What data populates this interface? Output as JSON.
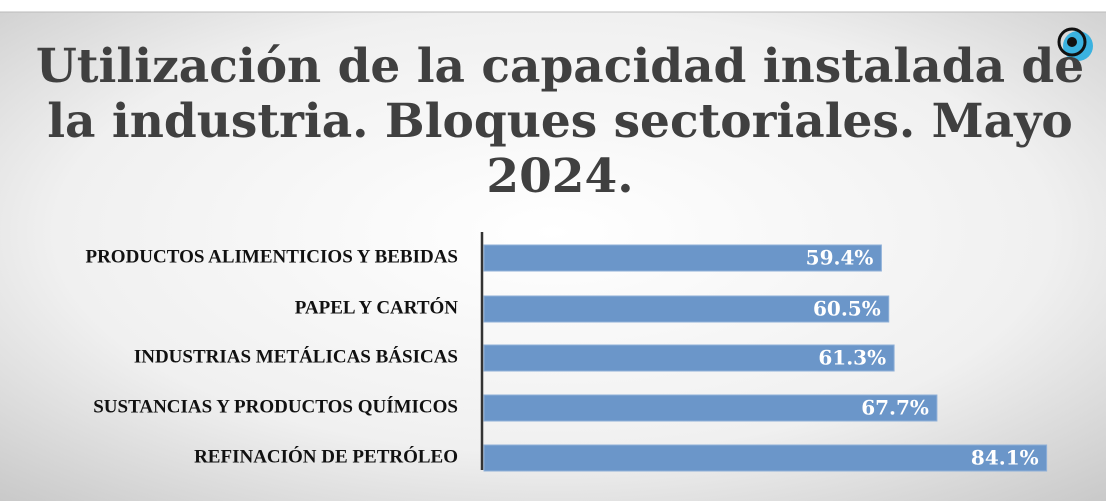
{
  "chart_data": {
    "type": "bar",
    "orientation": "horizontal",
    "title_lines": [
      "Utilización de la capacidad instalada de",
      "la industria. Bloques sectoriales. Mayo",
      "2024."
    ],
    "categories": [
      "PRODUCTOS ALIMENTICIOS Y BEBIDAS",
      "PAPEL Y CARTÓN",
      "INDUSTRIAS METÁLICAS BÁSICAS",
      "SUSTANCIAS Y PRODUCTOS QUÍMICOS",
      "REFINACIÓN DE PETRÓLEO"
    ],
    "values": [
      59.4,
      60.5,
      61.3,
      67.7,
      84.1
    ],
    "value_labels": [
      "59.4%",
      "60.5%",
      "61.3%",
      "67.7%",
      "84.1%"
    ],
    "color": "#6b96c9"
  }
}
